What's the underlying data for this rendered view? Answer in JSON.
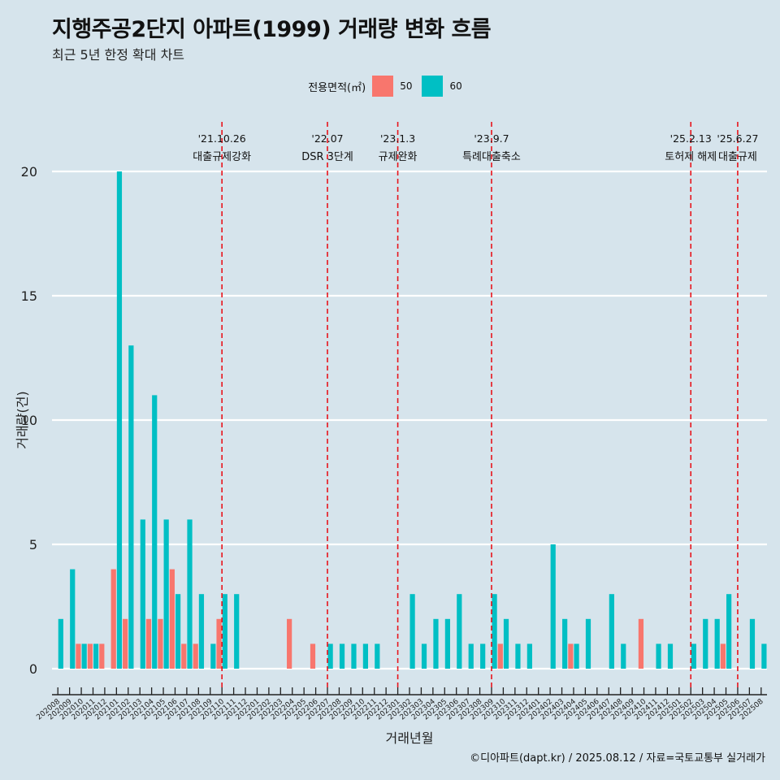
{
  "chart_data": {
    "type": "bar",
    "title": "지행주공2단지 아파트(1999) 거래량 변화 흐름",
    "subtitle": "최근 5년 한정 확대 차트",
    "xlabel": "거래년월",
    "ylabel": "거래량(건)",
    "ylim": [
      -0.85,
      22.5
    ],
    "yticks": [
      0,
      5,
      10,
      15,
      20
    ],
    "grid": "horizontal",
    "legend": {
      "title": "전용면적(㎡)",
      "placement": "top",
      "entries": [
        {
          "label": "50",
          "color": "#f8766d"
        },
        {
          "label": "60",
          "color": "#00bfc4"
        }
      ]
    },
    "categories": [
      "202008",
      "202009",
      "202010",
      "202011",
      "202012",
      "202101",
      "202102",
      "202103",
      "202104",
      "202105",
      "202106",
      "202107",
      "202108",
      "202109",
      "202110",
      "202111",
      "202112",
      "202201",
      "202202",
      "202203",
      "202204",
      "202205",
      "202206",
      "202207",
      "202208",
      "202209",
      "202210",
      "202211",
      "202212",
      "202301",
      "202302",
      "202303",
      "202304",
      "202305",
      "202306",
      "202307",
      "202308",
      "202309",
      "202310",
      "202311",
      "202312",
      "202401",
      "202402",
      "202403",
      "202404",
      "202405",
      "202406",
      "202407",
      "202408",
      "202409",
      "202410",
      "202411",
      "202412",
      "202501",
      "202502",
      "202503",
      "202504",
      "202505",
      "202506",
      "202507",
      "202508"
    ],
    "series": [
      {
        "name": "50",
        "color": "#f8766d",
        "values": [
          0,
          0,
          1,
          1,
          1,
          4,
          2,
          0,
          2,
          2,
          4,
          1,
          1,
          0,
          2,
          0,
          0,
          0,
          0,
          0,
          2,
          0,
          1,
          0,
          0,
          0,
          0,
          0,
          0,
          0,
          0,
          0,
          0,
          0,
          0,
          0,
          0,
          0,
          1,
          0,
          0,
          0,
          0,
          0,
          1,
          0,
          0,
          0,
          0,
          0,
          2,
          0,
          0,
          0,
          0,
          0,
          0,
          1,
          0,
          0,
          0
        ]
      },
      {
        "name": "60",
        "color": "#00bfc4",
        "values": [
          2,
          4,
          1,
          1,
          0,
          20,
          13,
          6,
          11,
          6,
          3,
          6,
          3,
          1,
          3,
          3,
          0,
          0,
          0,
          0,
          0,
          0,
          0,
          1,
          1,
          1,
          1,
          1,
          0,
          0,
          3,
          1,
          2,
          2,
          3,
          1,
          1,
          3,
          2,
          1,
          1,
          0,
          5,
          2,
          1,
          2,
          0,
          3,
          1,
          0,
          0,
          1,
          1,
          0,
          1,
          2,
          2,
          3,
          0,
          2,
          1
        ]
      }
    ],
    "annotations": [
      {
        "index": 14,
        "date": "'21.10.26",
        "label": "대출규제강화"
      },
      {
        "index": 23,
        "date": "'22.07",
        "label": "DSR 3단계"
      },
      {
        "index": 29,
        "date": "'23.1.3",
        "label": "규제완화"
      },
      {
        "index": 37,
        "date": "'23.9.7",
        "label": "특례대출축소"
      },
      {
        "index": 54,
        "date": "'25.2.13",
        "label": "토허제 해제"
      },
      {
        "index": 58,
        "date": "'25.6.27",
        "label": "대출규제"
      }
    ]
  },
  "colors": {
    "background": "#d6e4ec",
    "gridline": "#ffffff",
    "annotation_line": "#e8141b"
  },
  "caption": "©디아파트(dapt.kr) / 2025.08.12 / 자료=국토교통부 실거래가"
}
